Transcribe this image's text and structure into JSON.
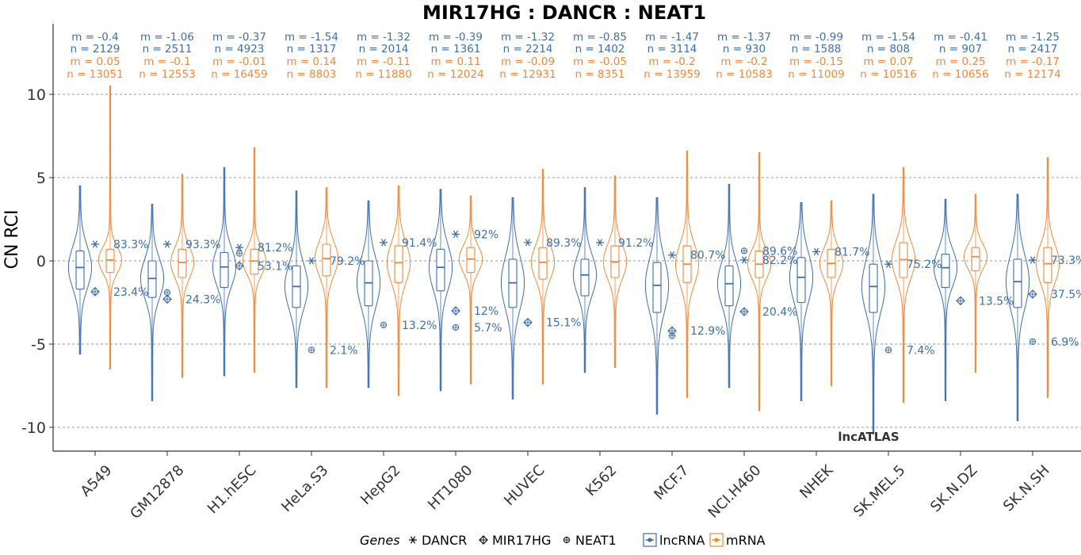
{
  "chart_data": {
    "type": "violin",
    "title": "MIR17HG : DANCR : NEAT1",
    "ylabel": "CN RCI",
    "ylim": [
      -11,
      14
    ],
    "yticks": [
      -10,
      -5,
      0,
      5,
      10
    ],
    "ytick_labels": [
      "-10",
      "-5",
      "0",
      "5",
      "10"
    ],
    "grid": "horizontal dashed",
    "watermark": "lncATLAS",
    "colors": {
      "lncRNA": "#3d6fb0",
      "mRNA": "#ee8a3a"
    },
    "legend": {
      "position": "bottom",
      "title": "Genes",
      "genes": [
        {
          "name": "DANCR",
          "symbol": "asterisk"
        },
        {
          "name": "MIR17HG",
          "symbol": "diamond-plus"
        },
        {
          "name": "NEAT1",
          "symbol": "circle-plus"
        }
      ],
      "types": [
        "lncRNA",
        "mRNA"
      ]
    },
    "categories": [
      "A549",
      "GM12878",
      "H1.hESC",
      "HeLa.S3",
      "HepG2",
      "HT1080",
      "HUVEC",
      "K562",
      "MCF.7",
      "NCI.H460",
      "NHEK",
      "SK.MEL.5",
      "SK.N.DZ",
      "SK.N.SH"
    ],
    "lncRNA": {
      "m_labels": [
        "m = -0.4",
        "m = -1.06",
        "m = -0.37",
        "m = -1.54",
        "m = -1.32",
        "m = -0.39",
        "m = -1.32",
        "m = -0.85",
        "m = -1.47",
        "m = -1.37",
        "m = -0.99",
        "m = -1.54",
        "m = -0.41",
        "m = -1.25"
      ],
      "n_labels": [
        "n = 2129",
        "n = 2511",
        "n = 4923",
        "n = 1317",
        "n = 2014",
        "n = 1361",
        "n = 2214",
        "n = 1402",
        "n = 3114",
        "n = 930",
        "n = 1588",
        "n = 808",
        "n = 907",
        "n = 2417"
      ],
      "median": [
        -0.4,
        -1.06,
        -0.37,
        -1.54,
        -1.32,
        -0.39,
        -1.32,
        -0.85,
        -1.47,
        -1.37,
        -0.99,
        -1.54,
        -0.41,
        -1.25
      ],
      "q1": [
        -1.7,
        -2.2,
        -1.6,
        -2.8,
        -2.7,
        -1.8,
        -2.8,
        -2.1,
        -3.1,
        -2.7,
        -2.5,
        -3.1,
        -1.6,
        -2.8
      ],
      "q3": [
        0.6,
        0.0,
        0.5,
        -0.3,
        0.0,
        0.7,
        0.1,
        0.1,
        -0.1,
        -0.3,
        0.2,
        -0.2,
        0.4,
        0.1
      ],
      "min": [
        -5.6,
        -8.4,
        -6.9,
        -7.6,
        -7.6,
        -7.8,
        -8.3,
        -6.7,
        -9.2,
        -7.6,
        -8.4,
        -10.4,
        -8.4,
        -9.6
      ],
      "max": [
        4.5,
        3.4,
        5.6,
        4.2,
        3.6,
        4.3,
        3.8,
        4.4,
        3.8,
        4.6,
        3.5,
        4.0,
        3.7,
        4.0
      ]
    },
    "mRNA": {
      "m_labels": [
        "m = 0.05",
        "m = -0.1",
        "m = -0.01",
        "m = 0.14",
        "m = -0.11",
        "m = 0.11",
        "m = -0.09",
        "m = -0.05",
        "m = -0.2",
        "m = -0.2",
        "m = -0.15",
        "m = 0.07",
        "m = 0.25",
        "m = -0.17"
      ],
      "n_labels": [
        "n = 13051",
        "n = 12553",
        "n = 16459",
        "n = 8803",
        "n = 11880",
        "n = 12024",
        "n = 12931",
        "n = 8351",
        "n = 13959",
        "n = 10583",
        "n = 11009",
        "n = 10516",
        "n = 10656",
        "n = 12174"
      ],
      "median": [
        0.05,
        -0.1,
        -0.01,
        0.14,
        -0.11,
        0.11,
        -0.09,
        -0.05,
        -0.2,
        -0.2,
        -0.15,
        0.07,
        0.25,
        -0.17
      ],
      "q1": [
        -0.7,
        -1.0,
        -0.8,
        -0.9,
        -1.3,
        -0.7,
        -1.1,
        -1.0,
        -1.3,
        -1.0,
        -1.0,
        -1.0,
        -0.6,
        -1.3
      ],
      "q3": [
        0.7,
        0.7,
        0.7,
        1.0,
        0.9,
        0.8,
        0.8,
        0.9,
        0.9,
        0.6,
        0.7,
        1.1,
        0.8,
        0.8
      ],
      "min": [
        -6.5,
        -7.0,
        -6.7,
        -7.6,
        -8.1,
        -7.4,
        -7.4,
        -6.4,
        -8.2,
        -9.0,
        -7.5,
        -8.5,
        -6.7,
        -8.2
      ],
      "max": [
        10.5,
        5.2,
        6.8,
        4.4,
        4.5,
        3.9,
        5.5,
        5.1,
        6.6,
        6.5,
        3.6,
        5.6,
        4.0,
        6.2
      ]
    },
    "genes": {
      "DANCR": {
        "value": [
          1.0,
          1.0,
          0.8,
          0.0,
          1.1,
          1.6,
          1.1,
          1.1,
          0.35,
          0.05,
          0.55,
          -0.2,
          null,
          0.05
        ],
        "pct_labels": [
          "83.3%",
          "93.3%",
          "81.2%",
          "79.2%",
          "91.4%",
          "92%",
          "89.3%",
          "91.2%",
          "80.7%",
          "82.2%",
          "81.7%",
          "75.2%",
          "",
          "73.3%"
        ]
      },
      "MIR17HG": {
        "value": [
          -1.85,
          -2.3,
          -0.3,
          null,
          null,
          -3.0,
          -3.7,
          null,
          -4.2,
          -3.05,
          null,
          null,
          -2.4,
          -2.0
        ],
        "pct_labels": [
          "23.4%",
          "24.3%",
          "53.1%",
          "",
          "",
          "12%",
          "15.1%",
          "",
          "12.9%",
          "20.4%",
          "",
          "",
          "13.5%",
          "37.5%"
        ]
      },
      "NEAT1": {
        "value": [
          null,
          -1.9,
          0.45,
          -5.35,
          -3.85,
          -4.0,
          null,
          null,
          -4.5,
          0.6,
          null,
          -5.35,
          null,
          -4.85
        ],
        "pct_labels": [
          "",
          "",
          "",
          "2.1%",
          "13.2%",
          "5.7%",
          "",
          "",
          "",
          "89.6%",
          "",
          "7.4%",
          "",
          "6.9%"
        ]
      }
    }
  }
}
